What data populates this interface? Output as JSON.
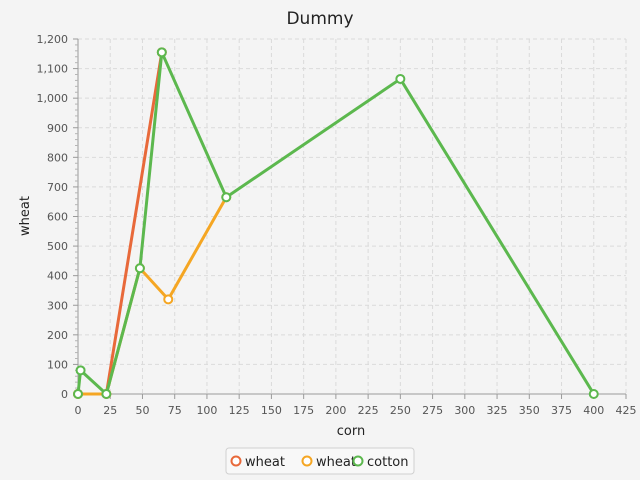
{
  "chart_data": {
    "type": "line",
    "title": "Dummy",
    "xlabel": "corn",
    "ylabel": "wheat",
    "xlim": [
      0,
      425
    ],
    "ylim": [
      0,
      1200
    ],
    "x_ticks": [
      0,
      25,
      50,
      75,
      100,
      125,
      150,
      175,
      200,
      225,
      250,
      275,
      300,
      325,
      350,
      375,
      400,
      425
    ],
    "y_ticks": [
      0,
      100,
      200,
      300,
      400,
      500,
      600,
      700,
      800,
      900,
      1000,
      1100,
      1200
    ],
    "y_tick_labels": [
      "0",
      "100",
      "200",
      "300",
      "400",
      "500",
      "600",
      "700",
      "800",
      "900",
      "1,000",
      "1,100",
      "1,200"
    ],
    "grid": true,
    "legend_position": "bottom",
    "series": [
      {
        "name": "wheat",
        "color": "#e8693a",
        "points": [
          [
            0,
            0
          ],
          [
            22,
            0
          ],
          [
            65,
            1155
          ]
        ]
      },
      {
        "name": "wheat",
        "color": "#f5a623",
        "points": [
          [
            0,
            0
          ],
          [
            22,
            0
          ],
          [
            48,
            425
          ],
          [
            70,
            320
          ],
          [
            115,
            665
          ]
        ]
      },
      {
        "name": "cotton",
        "color": "#5cb84e",
        "points": [
          [
            0,
            0
          ],
          [
            2,
            80
          ],
          [
            22,
            0
          ],
          [
            48,
            425
          ],
          [
            65,
            1155
          ],
          [
            115,
            665
          ],
          [
            250,
            1065
          ],
          [
            400,
            0
          ]
        ]
      }
    ]
  }
}
